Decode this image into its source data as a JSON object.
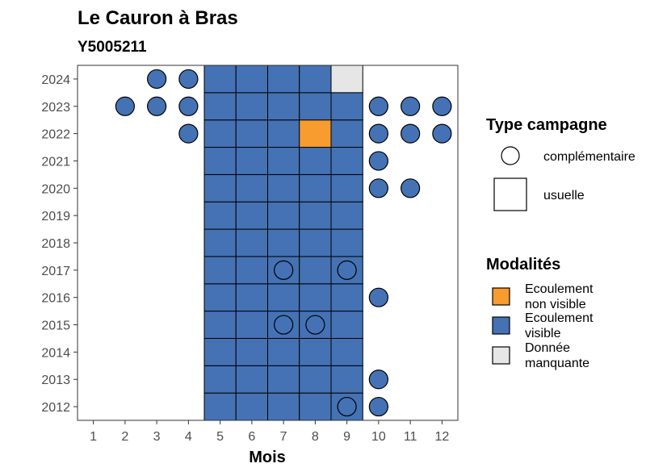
{
  "chart_data": {
    "type": "heatmap",
    "title": "Le Cauron à Bras",
    "subtitle": "Y5005211",
    "xlabel": "Mois",
    "ylabel": "",
    "x_ticks": [
      1,
      2,
      3,
      4,
      5,
      6,
      7,
      8,
      9,
      10,
      11,
      12
    ],
    "y_ticks": [
      2012,
      2013,
      2014,
      2015,
      2016,
      2017,
      2018,
      2019,
      2020,
      2021,
      2022,
      2023,
      2024
    ],
    "xlim": [
      0.5,
      12.5
    ],
    "ylim": [
      2011.5,
      2024.5
    ],
    "grid": false,
    "legend_position": "right",
    "modalite_colors": {
      "Ecoulement non visible": "#f89c2f",
      "Ecoulement visible": "#4472b5",
      "Donnée manquante": "#e6e6e6"
    },
    "legend": {
      "type_title": "Type campagne",
      "type_items": [
        {
          "shape": "circle",
          "label": "complémentaire"
        },
        {
          "shape": "square",
          "label": "usuelle"
        }
      ],
      "modalite_title": "Modalités",
      "modalite_items": [
        {
          "label": "Ecoulement non visible",
          "lines": [
            "Ecoulement",
            "non visible"
          ],
          "color": "#f89c2f"
        },
        {
          "label": "Ecoulement visible",
          "lines": [
            "Ecoulement",
            "visible"
          ],
          "color": "#4472b5"
        },
        {
          "label": "Donnée manquante",
          "lines": [
            "Donnée",
            "manquante"
          ],
          "color": "#e6e6e6"
        }
      ]
    },
    "usuelle": [
      {
        "year": 2012,
        "months": {
          "5": "Ecoulement visible",
          "6": "Ecoulement visible",
          "7": "Ecoulement visible",
          "8": "Ecoulement visible",
          "9": "Ecoulement visible"
        }
      },
      {
        "year": 2013,
        "months": {
          "5": "Ecoulement visible",
          "6": "Ecoulement visible",
          "7": "Ecoulement visible",
          "8": "Ecoulement visible",
          "9": "Ecoulement visible"
        }
      },
      {
        "year": 2014,
        "months": {
          "5": "Ecoulement visible",
          "6": "Ecoulement visible",
          "7": "Ecoulement visible",
          "8": "Ecoulement visible",
          "9": "Ecoulement visible"
        }
      },
      {
        "year": 2015,
        "months": {
          "5": "Ecoulement visible",
          "6": "Ecoulement visible",
          "7": "Ecoulement visible",
          "8": "Ecoulement visible",
          "9": "Ecoulement visible"
        }
      },
      {
        "year": 2016,
        "months": {
          "5": "Ecoulement visible",
          "6": "Ecoulement visible",
          "7": "Ecoulement visible",
          "8": "Ecoulement visible",
          "9": "Ecoulement visible"
        }
      },
      {
        "year": 2017,
        "months": {
          "5": "Ecoulement visible",
          "6": "Ecoulement visible",
          "7": "Ecoulement visible",
          "8": "Ecoulement visible",
          "9": "Ecoulement visible"
        }
      },
      {
        "year": 2018,
        "months": {
          "5": "Ecoulement visible",
          "6": "Ecoulement visible",
          "7": "Ecoulement visible",
          "8": "Ecoulement visible",
          "9": "Ecoulement visible"
        }
      },
      {
        "year": 2019,
        "months": {
          "5": "Ecoulement visible",
          "6": "Ecoulement visible",
          "7": "Ecoulement visible",
          "8": "Ecoulement visible",
          "9": "Ecoulement visible"
        }
      },
      {
        "year": 2020,
        "months": {
          "5": "Ecoulement visible",
          "6": "Ecoulement visible",
          "7": "Ecoulement visible",
          "8": "Ecoulement visible",
          "9": "Ecoulement visible"
        }
      },
      {
        "year": 2021,
        "months": {
          "5": "Ecoulement visible",
          "6": "Ecoulement visible",
          "7": "Ecoulement visible",
          "8": "Ecoulement visible",
          "9": "Ecoulement visible"
        }
      },
      {
        "year": 2022,
        "months": {
          "5": "Ecoulement visible",
          "6": "Ecoulement visible",
          "7": "Ecoulement visible",
          "8": "Ecoulement non visible",
          "9": "Ecoulement visible"
        }
      },
      {
        "year": 2023,
        "months": {
          "5": "Ecoulement visible",
          "6": "Ecoulement visible",
          "7": "Ecoulement visible",
          "8": "Ecoulement visible",
          "9": "Ecoulement visible"
        }
      },
      {
        "year": 2024,
        "months": {
          "5": "Ecoulement visible",
          "6": "Ecoulement visible",
          "7": "Ecoulement visible",
          "8": "Ecoulement visible",
          "9": "Donnée manquante"
        }
      }
    ],
    "complementaire": [
      {
        "year": 2024,
        "month": 3,
        "modalite": "Ecoulement visible"
      },
      {
        "year": 2024,
        "month": 4,
        "modalite": "Ecoulement visible"
      },
      {
        "year": 2023,
        "month": 2,
        "modalite": "Ecoulement visible"
      },
      {
        "year": 2023,
        "month": 3,
        "modalite": "Ecoulement visible"
      },
      {
        "year": 2023,
        "month": 4,
        "modalite": "Ecoulement visible"
      },
      {
        "year": 2023,
        "month": 10,
        "modalite": "Ecoulement visible"
      },
      {
        "year": 2023,
        "month": 11,
        "modalite": "Ecoulement visible"
      },
      {
        "year": 2023,
        "month": 12,
        "modalite": "Ecoulement visible"
      },
      {
        "year": 2022,
        "month": 4,
        "modalite": "Ecoulement visible"
      },
      {
        "year": 2022,
        "month": 10,
        "modalite": "Ecoulement visible"
      },
      {
        "year": 2022,
        "month": 11,
        "modalite": "Ecoulement visible"
      },
      {
        "year": 2022,
        "month": 12,
        "modalite": "Ecoulement visible"
      },
      {
        "year": 2021,
        "month": 10,
        "modalite": "Ecoulement visible"
      },
      {
        "year": 2020,
        "month": 10,
        "modalite": "Ecoulement visible"
      },
      {
        "year": 2020,
        "month": 11,
        "modalite": "Ecoulement visible"
      },
      {
        "year": 2017,
        "month": 7,
        "modalite": "Ecoulement visible"
      },
      {
        "year": 2017,
        "month": 9,
        "modalite": "Ecoulement visible"
      },
      {
        "year": 2016,
        "month": 10,
        "modalite": "Ecoulement visible"
      },
      {
        "year": 2015,
        "month": 7,
        "modalite": "Ecoulement visible"
      },
      {
        "year": 2015,
        "month": 8,
        "modalite": "Ecoulement visible"
      },
      {
        "year": 2013,
        "month": 10,
        "modalite": "Ecoulement visible"
      },
      {
        "year": 2012,
        "month": 9,
        "modalite": "Ecoulement visible"
      },
      {
        "year": 2012,
        "month": 10,
        "modalite": "Ecoulement visible"
      }
    ]
  }
}
